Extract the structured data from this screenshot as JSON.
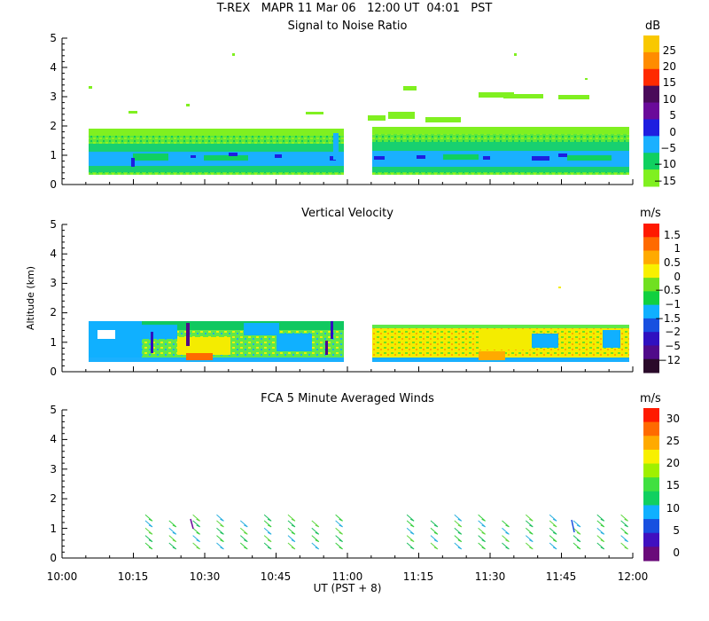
{
  "header": {
    "line1": "T-REX   MAPR 11 Mar 06   12:00 UT  04:01   PST"
  },
  "chart_data": [
    {
      "type": "heatmap",
      "title": "Signal to Noise Ratio",
      "xlabel": "UT  (PST + 8)",
      "ylabel": "Altitude (km)",
      "xlim": [
        "10:00",
        "12:00"
      ],
      "ylim": [
        0,
        5
      ],
      "y_ticks": [
        "0",
        "1",
        "2",
        "3",
        "4",
        "5"
      ],
      "colorbar": {
        "unit": "dB",
        "labels": [
          "25",
          "20",
          "15",
          "10",
          "5",
          "0",
          "−5",
          "−10",
          "−15"
        ],
        "colors": [
          "#f9c800",
          "#ff8c00",
          "#ff2a00",
          "#4a0a5a",
          "#6a0a9a",
          "#1e1ee0",
          "#1ab0ff",
          "#10d060",
          "#80f020"
        ]
      }
    },
    {
      "type": "heatmap",
      "title": "Vertical Velocity",
      "ylabel": "Altitude (km)",
      "xlim": [
        "10:00",
        "12:00"
      ],
      "ylim": [
        0,
        5
      ],
      "y_ticks": [
        "0",
        "1",
        "2",
        "3",
        "4",
        "5"
      ],
      "colorbar": {
        "unit": "m/s",
        "labels": [
          "1.5",
          "1",
          "0.5",
          "0",
          "−0.5",
          "−1",
          "−1.5",
          "−2",
          "−5",
          "−12"
        ],
        "colors": [
          "#ff1a00",
          "#ff6a00",
          "#ffaa00",
          "#f8f000",
          "#70e020",
          "#10d040",
          "#10b0ff",
          "#1850e0",
          "#3010c0",
          "#500a8a",
          "#2a0a2a"
        ]
      }
    },
    {
      "type": "scatter",
      "title": "FCA 5 Minute Averaged Winds",
      "xlabel": "UT  (PST + 8)",
      "ylabel": "Altitude (km)",
      "x_ticks": [
        "10:00",
        "10:15",
        "10:30",
        "10:45",
        "11:00",
        "11:15",
        "11:30",
        "11:45",
        "12:00"
      ],
      "ylim": [
        0,
        5
      ],
      "y_ticks": [
        "0",
        "1",
        "2",
        "3",
        "4",
        "5"
      ],
      "colorbar": {
        "unit": "m/s",
        "labels": [
          "30",
          "25",
          "20",
          "15",
          "10",
          "5",
          "0"
        ],
        "colors": [
          "#ff1a00",
          "#ff6a00",
          "#ffaa00",
          "#f8f000",
          "#a0f000",
          "#40e040",
          "#10d060",
          "#10b0ff",
          "#1850e0",
          "#4010c0",
          "#6a0a7a"
        ]
      },
      "barb_times": [
        "10:19",
        "10:24",
        "10:29",
        "10:34",
        "10:39",
        "10:44",
        "10:49",
        "10:54",
        "10:59",
        "11:14",
        "11:19",
        "11:24",
        "11:29",
        "11:34",
        "11:39",
        "11:44",
        "11:49",
        "11:54",
        "11:59"
      ]
    }
  ]
}
